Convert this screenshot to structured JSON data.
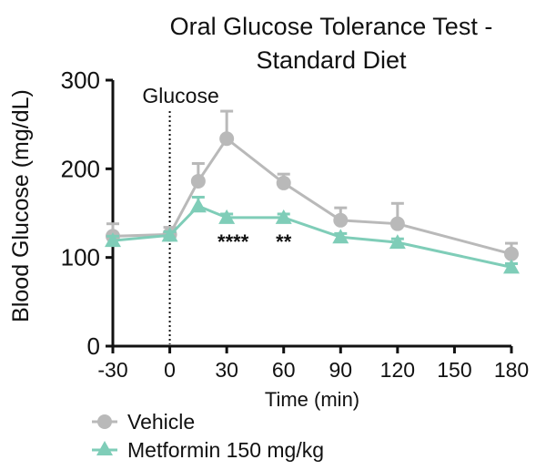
{
  "chart_data": {
    "type": "line",
    "title_lines": [
      "Oral Glucose Tolerance Test -",
      "Standard Diet"
    ],
    "xlabel": "Time (min)",
    "ylabel": "Blood Glucose (mg/dL)",
    "xlim": [
      -30,
      180
    ],
    "ylim": [
      0,
      300
    ],
    "xticks": [
      -30,
      0,
      30,
      60,
      90,
      120,
      150,
      180
    ],
    "yticks": [
      0,
      100,
      200,
      300
    ],
    "x": [
      -30,
      0,
      15,
      30,
      60,
      90,
      120,
      180
    ],
    "series": [
      {
        "name": "Vehicle",
        "marker": "circle",
        "color": "#b9b9b9",
        "values": [
          124,
          126,
          186,
          234,
          184,
          142,
          138,
          104
        ],
        "errors": [
          14,
          8,
          20,
          31,
          10,
          14,
          23,
          12
        ]
      },
      {
        "name": "Metformin 150 mg/kg",
        "marker": "triangle",
        "color": "#7fcdb8",
        "values": [
          119,
          125,
          158,
          145,
          145,
          123,
          117,
          89
        ],
        "errors": [
          5,
          4,
          10,
          4,
          4,
          4,
          4,
          4
        ]
      }
    ],
    "annotations": [
      {
        "text": "Glucose",
        "x": 0,
        "kind": "vertical-dotted-line"
      },
      {
        "text": "****",
        "x": 30,
        "kind": "significance"
      },
      {
        "text": "**",
        "x": 60,
        "kind": "significance"
      }
    ],
    "legend_position": "bottom-left",
    "grid": false
  }
}
